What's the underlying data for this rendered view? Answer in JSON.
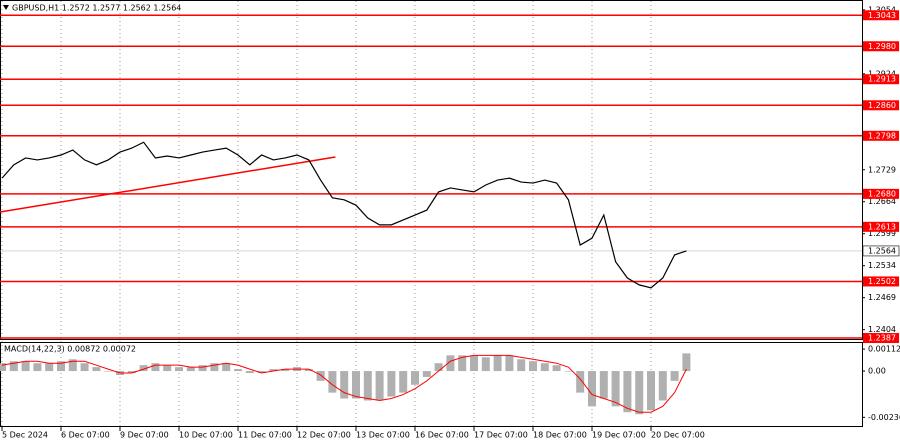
{
  "chart_data": [
    {
      "type": "line",
      "title": "GBPUSD,H1  1.2572 1.2577 1.2562 1.2564",
      "categories": [
        "5 Dec 2024",
        null,
        null,
        null,
        null,
        "6 Dec 07:00",
        null,
        null,
        null,
        null,
        "9 Dec 07:00",
        null,
        null,
        null,
        null,
        "10 Dec 07:00",
        null,
        null,
        null,
        null,
        "11 Dec 07:00",
        null,
        null,
        null,
        null,
        "12 Dec 07:00",
        null,
        null,
        null,
        null,
        "13 Dec 07:00",
        null,
        null,
        null,
        null,
        "16 Dec 07:00",
        null,
        null,
        null,
        null,
        "17 Dec 07:00",
        null,
        null,
        null,
        null,
        "18 Dec 07:00",
        null,
        null,
        null,
        null,
        "19 Dec 07:00",
        null,
        null,
        null,
        null,
        "20 Dec 07:00",
        null,
        null,
        null
      ],
      "series": [
        {
          "color": "#000000",
          "values": [
            1.2712,
            1.2739,
            1.2753,
            1.2749,
            1.2753,
            1.2759,
            1.2769,
            1.2749,
            1.2739,
            1.2749,
            1.2765,
            1.2773,
            1.2785,
            1.2753,
            1.2757,
            1.2753,
            1.2759,
            1.2765,
            1.2769,
            1.2773,
            1.2759,
            1.2739,
            1.2759,
            1.2749,
            1.2753,
            1.2759,
            1.2749,
            1.2708,
            1.2672,
            1.2668,
            1.2657,
            1.2631,
            1.2617,
            1.2617,
            1.2627,
            1.2637,
            1.2647,
            1.2684,
            1.2692,
            1.2688,
            1.2684,
            1.2698,
            1.2708,
            1.2712,
            1.2704,
            1.2702,
            1.2708,
            1.2702,
            1.2668,
            1.2576,
            1.259,
            1.2637,
            1.2542,
            1.2509,
            1.2495,
            1.2489,
            1.2509,
            1.2556,
            1.2564
          ]
        }
      ],
      "levels": [
        1.3043,
        {
          "value": 1.298,
          "label": "1.2980"
        },
        1.2913,
        {
          "value": 1.286,
          "label": "1.2860"
        },
        1.2798,
        {
          "value": 1.268,
          "label": "1.2680"
        },
        1.2613,
        1.2502,
        1.2387
      ],
      "level_color": "#ff0000",
      "current_price": 1.2564,
      "trendline": [
        1.2643,
        1.2755
      ],
      "ylim": [
        1.2383,
        1.3074
      ],
      "yticks": [
        1.3054,
        1.2924,
        1.2729,
        1.2664,
        1.2599,
        1.2534,
        1.2469,
        1.2404
      ]
    },
    {
      "type": "macd",
      "title": "MACD(14,22,3) 0.00872 0.00072",
      "series": [
        {
          "color": "#b0b0b0",
          "values": [
            0.0004,
            0.0005,
            0.0005,
            0.0004,
            0.0004,
            0.0005,
            0.0006,
            0.0004,
            0.0002,
            0.0,
            -0.0002,
            -0.0001,
            0.0003,
            0.0004,
            0.0003,
            0.0002,
            0.0002,
            0.0003,
            0.0004,
            0.0004,
            0.0001,
            -0.0001,
            -0.0001,
            0.0001,
            0.0001,
            0.0002,
            0.0001,
            -0.0005,
            -0.0011,
            -0.0014,
            -0.0014,
            -0.0015,
            -0.0015,
            -0.0013,
            -0.0011,
            -0.0007,
            -0.0003,
            0.0004,
            0.0008,
            0.0008,
            0.0008,
            0.0007,
            0.0008,
            0.0008,
            0.0006,
            0.0005,
            0.0004,
            0.0003,
            0.0,
            -0.0011,
            -0.0018,
            -0.0014,
            -0.0018,
            -0.0021,
            -0.0022,
            -0.002,
            -0.0015,
            -0.0005,
            0.0009
          ]
        },
        {
          "color": "#ff0000",
          "values": [
            0.0003,
            0.0004,
            0.0005,
            0.0005,
            0.0004,
            0.0004,
            0.0005,
            0.0005,
            0.0003,
            0.0001,
            -0.0001,
            -0.0001,
            0.0001,
            0.0003,
            0.0003,
            0.0003,
            0.0002,
            0.0002,
            0.0003,
            0.0004,
            0.0003,
            0.0001,
            -0.0001,
            0.0,
            0.0001,
            0.0001,
            0.0001,
            -0.0002,
            -0.0007,
            -0.0011,
            -0.0013,
            -0.0014,
            -0.0015,
            -0.0014,
            -0.0012,
            -0.0009,
            -0.0005,
            0.0,
            0.0005,
            0.0007,
            0.0008,
            0.0008,
            0.0008,
            0.0008,
            0.0007,
            0.0006,
            0.0005,
            0.0004,
            0.0002,
            -0.0004,
            -0.0012,
            -0.0014,
            -0.0016,
            -0.0019,
            -0.0021,
            -0.0021,
            -0.0018,
            -0.0011,
            0.0001
          ]
        }
      ],
      "ylim": [
        -0.00275,
        0.00143
      ],
      "yticks": [
        0.00112,
        {
          "value": 0,
          "label": "0.00"
        },
        -0.00236
      ]
    }
  ]
}
